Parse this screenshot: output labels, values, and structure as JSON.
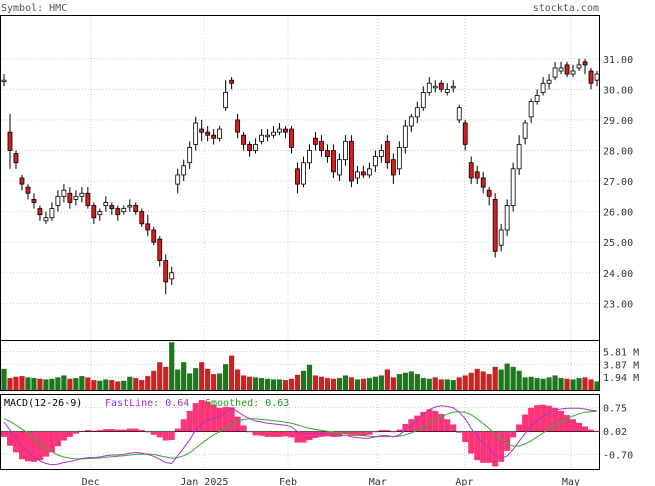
{
  "header": {
    "symbol_label": "Symbol: HMC",
    "site": "stockta.com"
  },
  "macd": {
    "label": "MACD(12-26-9)",
    "fast_label": "FastLine: 0.64",
    "smooth_label": "Smoothed: 0.63"
  },
  "colors": {
    "up": "#ffffff",
    "down": "#cc2222",
    "vol_up": "#1a7a1a",
    "vol_down": "#cc2222",
    "hist": "#ff3377",
    "fast_line": "#aa33cc",
    "smooth_line": "#33aa33",
    "grid": "#cccccc",
    "label_purple": "#9933cc",
    "label_green": "#229922"
  },
  "chart_data": [
    {
      "type": "candlestick",
      "title": "",
      "symbol": "HMC",
      "x_labels": [
        "Dec",
        "Jan 2025",
        "Feb",
        "Mar",
        "Apr",
        "May"
      ],
      "y_ticks": [
        "31.00",
        "30.00",
        "29.00",
        "28.00",
        "27.00",
        "26.00",
        "25.00",
        "24.00",
        "23.00"
      ],
      "y_tick_values": [
        31,
        30,
        29,
        28,
        27,
        26,
        25,
        24,
        23
      ],
      "ylim": [
        21.8,
        32.4
      ],
      "closes": [
        30.3,
        28.0,
        27.6,
        26.9,
        26.6,
        26.3,
        25.9,
        25.8,
        26.1,
        26.5,
        26.7,
        26.3,
        26.5,
        26.6,
        26.2,
        25.8,
        26.0,
        26.3,
        26.1,
        25.9,
        26.1,
        26.2,
        26.0,
        25.6,
        25.4,
        25.0,
        24.4,
        23.7,
        24.0,
        27.2,
        27.5,
        28.1,
        28.9,
        28.6,
        28.5,
        28.4,
        28.7,
        29.9,
        30.2,
        28.6,
        28.2,
        28.0,
        28.2,
        28.5,
        28.5,
        28.6,
        28.7,
        28.6,
        28.1,
        26.9,
        27.6,
        28.0,
        28.2,
        28.0,
        27.8,
        27.3,
        27.7,
        28.3,
        27.0,
        27.3,
        27.2,
        27.4,
        27.8,
        28.0,
        27.6,
        27.2,
        28.1,
        28.8,
        29.1,
        29.4,
        29.9,
        30.2,
        30.1,
        30.0,
        30.0,
        30.1,
        29.4,
        28.2,
        27.1,
        27.1,
        26.8,
        26.5,
        24.7,
        25.4,
        26.2,
        27.4,
        28.2,
        28.9,
        29.6,
        29.8,
        30.2,
        30.3,
        30.7,
        30.7,
        30.5,
        30.6,
        30.8,
        30.8,
        30.2,
        30.5
      ],
      "opens": [
        30.3,
        28.6,
        27.9,
        27.1,
        26.8,
        26.4,
        26.1,
        25.7,
        25.8,
        26.2,
        26.5,
        26.6,
        26.4,
        26.5,
        26.6,
        26.2,
        25.9,
        26.2,
        26.2,
        26.1,
        26.0,
        26.2,
        26.2,
        26.0,
        25.6,
        25.4,
        25.1,
        24.4,
        23.8,
        26.9,
        27.2,
        27.6,
        28.2,
        28.7,
        28.6,
        28.5,
        28.4,
        29.4,
        30.3,
        29.0,
        28.5,
        28.2,
        28.0,
        28.3,
        28.5,
        28.5,
        28.6,
        28.7,
        28.7,
        27.4,
        26.9,
        27.6,
        28.4,
        28.3,
        28.0,
        28.0,
        27.2,
        27.7,
        28.3,
        27.1,
        27.3,
        27.2,
        27.5,
        27.8,
        28.3,
        27.7,
        27.4,
        28.1,
        28.8,
        29.1,
        29.4,
        29.9,
        30.1,
        30.2,
        29.9,
        30.1,
        29.0,
        28.9,
        27.6,
        27.3,
        27.1,
        26.7,
        26.4,
        24.9,
        25.4,
        26.2,
        27.4,
        28.4,
        29.1,
        29.6,
        29.9,
        30.2,
        30.4,
        30.6,
        30.8,
        30.5,
        30.7,
        30.9,
        30.6,
        30.3
      ],
      "highs": [
        30.5,
        29.2,
        28.0,
        27.2,
        26.9,
        26.6,
        26.2,
        26.0,
        26.3,
        26.7,
        26.9,
        26.8,
        26.7,
        26.8,
        26.8,
        26.3,
        26.1,
        26.5,
        26.3,
        26.2,
        26.2,
        26.4,
        26.3,
        26.1,
        25.9,
        25.5,
        25.2,
        24.6,
        24.2,
        27.4,
        27.7,
        28.3,
        29.1,
        29.0,
        28.8,
        28.7,
        28.8,
        30.3,
        30.4,
        29.2,
        28.6,
        28.3,
        28.4,
        28.7,
        28.7,
        28.8,
        28.9,
        28.8,
        28.8,
        27.6,
        27.8,
        28.2,
        28.6,
        28.5,
        28.2,
        28.2,
        27.9,
        28.5,
        28.5,
        27.5,
        27.5,
        27.6,
        28.0,
        28.2,
        28.5,
        27.9,
        28.3,
        29.0,
        29.2,
        29.6,
        30.1,
        30.4,
        30.3,
        30.3,
        30.2,
        30.3,
        29.5,
        29.0,
        27.8,
        27.5,
        27.3,
        26.8,
        26.6,
        25.6,
        26.4,
        27.6,
        28.5,
        29.0,
        29.7,
        30.0,
        30.4,
        30.5,
        30.9,
        30.9,
        30.9,
        30.8,
        31.0,
        31.0,
        30.7,
        30.6
      ],
      "lows": [
        30.1,
        27.4,
        27.4,
        26.7,
        26.4,
        26.1,
        25.7,
        25.6,
        25.7,
        26.0,
        26.3,
        26.1,
        26.2,
        26.3,
        26.1,
        25.6,
        25.7,
        26.0,
        25.9,
        25.7,
        25.9,
        26.0,
        25.9,
        25.5,
        25.2,
        24.9,
        24.2,
        23.3,
        23.6,
        26.6,
        27.0,
        27.4,
        28.0,
        28.3,
        28.3,
        28.2,
        28.3,
        29.3,
        30.0,
        28.4,
        28.0,
        27.8,
        27.9,
        28.2,
        28.3,
        28.4,
        28.5,
        28.4,
        27.9,
        26.6,
        26.8,
        27.4,
        28.0,
        27.8,
        27.6,
        27.1,
        27.0,
        27.5,
        26.8,
        26.9,
        27.1,
        27.1,
        27.3,
        27.6,
        27.4,
        26.9,
        27.2,
        27.9,
        28.6,
        28.9,
        29.3,
        29.8,
        29.9,
        29.9,
        29.8,
        29.9,
        28.9,
        28.0,
        26.9,
        26.9,
        26.6,
        26.2,
        24.5,
        24.7,
        25.2,
        26.0,
        27.2,
        28.2,
        28.9,
        29.5,
        29.8,
        30.0,
        30.3,
        30.5,
        30.4,
        30.4,
        30.6,
        30.5,
        30.0,
        30.1
      ]
    },
    {
      "type": "bar",
      "title": "Volume",
      "y_ticks": [
        "5.81 M",
        "3.87 M",
        "1.94 M"
      ],
      "y_tick_values": [
        5.81,
        3.87,
        1.94
      ],
      "ylim": [
        0,
        7.4
      ],
      "values": [
        3.2,
        1.8,
        2.0,
        2.1,
        1.9,
        1.8,
        1.7,
        1.6,
        1.7,
        1.9,
        2.2,
        1.7,
        1.8,
        2.1,
        1.9,
        1.5,
        1.4,
        1.6,
        1.5,
        1.3,
        1.4,
        2.0,
        1.8,
        1.5,
        2.1,
        2.9,
        4.2,
        3.5,
        7.2,
        3.1,
        4.2,
        2.5,
        3.3,
        4.2,
        3.2,
        2.4,
        2.5,
        3.9,
        5.2,
        3.1,
        2.2,
        2.0,
        1.9,
        1.8,
        1.7,
        1.6,
        1.6,
        1.5,
        1.7,
        2.3,
        2.9,
        3.8,
        2.2,
        2.0,
        1.8,
        1.7,
        1.8,
        2.2,
        1.9,
        1.6,
        1.7,
        1.8,
        2.0,
        2.2,
        3.1,
        1.9,
        2.4,
        2.6,
        2.8,
        2.4,
        1.8,
        1.7,
        1.9,
        1.6,
        1.6,
        1.5,
        1.9,
        2.2,
        2.6,
        3.2,
        2.8,
        2.4,
        3.5,
        3.1,
        4.0,
        3.5,
        2.9,
        1.9,
        2.0,
        1.8,
        1.7,
        1.9,
        2.2,
        1.8,
        1.7,
        1.6,
        1.8,
        1.9,
        1.6,
        1.3
      ],
      "up_flags": [
        1,
        0,
        0,
        0,
        1,
        1,
        0,
        1,
        1,
        1,
        1,
        0,
        1,
        1,
        0,
        0,
        1,
        1,
        0,
        0,
        1,
        1,
        0,
        0,
        0,
        0,
        0,
        0,
        1,
        1,
        1,
        1,
        1,
        0,
        0,
        0,
        1,
        1,
        0,
        0,
        0,
        0,
        1,
        1,
        1,
        1,
        1,
        0,
        0,
        0,
        1,
        1,
        0,
        0,
        0,
        0,
        1,
        1,
        0,
        1,
        0,
        1,
        1,
        1,
        0,
        0,
        1,
        1,
        1,
        1,
        1,
        1,
        0,
        0,
        1,
        1,
        0,
        0,
        0,
        0,
        0,
        0,
        0,
        1,
        1,
        1,
        1,
        1,
        1,
        1,
        1,
        1,
        1,
        1,
        0,
        1,
        1,
        0,
        0,
        1
      ]
    },
    {
      "type": "line",
      "title": "MACD(12-26-9)",
      "y_ticks": [
        "0.75",
        "0.02",
        "-0.70"
      ],
      "y_tick_values": [
        0.75,
        0.02,
        -0.7
      ],
      "ylim": [
        -1.15,
        1.1
      ],
      "series": [
        {
          "name": "FastLine",
          "values": [
            0.3,
            0.05,
            -0.2,
            -0.45,
            -0.62,
            -0.78,
            -0.9,
            -0.98,
            -1.02,
            -1.0,
            -0.95,
            -0.92,
            -0.88,
            -0.83,
            -0.8,
            -0.8,
            -0.78,
            -0.74,
            -0.72,
            -0.72,
            -0.7,
            -0.66,
            -0.64,
            -0.66,
            -0.7,
            -0.76,
            -0.85,
            -0.95,
            -0.98,
            -0.74,
            -0.5,
            -0.25,
            0.05,
            0.25,
            0.36,
            0.42,
            0.46,
            0.6,
            0.72,
            0.62,
            0.5,
            0.4,
            0.33,
            0.3,
            0.26,
            0.24,
            0.22,
            0.2,
            0.15,
            0.0,
            -0.06,
            -0.06,
            -0.05,
            -0.06,
            -0.08,
            -0.12,
            -0.14,
            -0.1,
            -0.16,
            -0.18,
            -0.2,
            -0.2,
            -0.16,
            -0.12,
            -0.12,
            -0.16,
            -0.1,
            0.05,
            0.2,
            0.35,
            0.52,
            0.68,
            0.76,
            0.8,
            0.78,
            0.74,
            0.6,
            0.4,
            0.1,
            -0.15,
            -0.35,
            -0.5,
            -0.75,
            -0.82,
            -0.75,
            -0.55,
            -0.3,
            -0.05,
            0.18,
            0.35,
            0.48,
            0.58,
            0.66,
            0.7,
            0.72,
            0.72,
            0.72,
            0.7,
            0.66,
            0.64
          ]
        },
        {
          "name": "Smoothed",
          "values": [
            0.4,
            0.32,
            0.2,
            0.08,
            -0.05,
            -0.2,
            -0.35,
            -0.5,
            -0.62,
            -0.72,
            -0.78,
            -0.82,
            -0.84,
            -0.84,
            -0.83,
            -0.82,
            -0.81,
            -0.79,
            -0.77,
            -0.76,
            -0.74,
            -0.72,
            -0.7,
            -0.69,
            -0.69,
            -0.7,
            -0.74,
            -0.78,
            -0.82,
            -0.8,
            -0.74,
            -0.65,
            -0.5,
            -0.36,
            -0.22,
            -0.1,
            0.0,
            0.12,
            0.25,
            0.33,
            0.38,
            0.4,
            0.4,
            0.38,
            0.36,
            0.34,
            0.32,
            0.29,
            0.26,
            0.21,
            0.15,
            0.1,
            0.07,
            0.04,
            0.01,
            -0.02,
            -0.05,
            -0.06,
            -0.08,
            -0.1,
            -0.12,
            -0.14,
            -0.15,
            -0.15,
            -0.15,
            -0.15,
            -0.14,
            -0.1,
            -0.04,
            0.04,
            0.14,
            0.25,
            0.36,
            0.46,
            0.54,
            0.6,
            0.62,
            0.6,
            0.52,
            0.4,
            0.25,
            0.1,
            -0.08,
            -0.24,
            -0.38,
            -0.44,
            -0.44,
            -0.38,
            -0.28,
            -0.16,
            -0.04,
            0.08,
            0.2,
            0.3,
            0.4,
            0.48,
            0.55,
            0.6,
            0.62,
            0.63
          ]
        }
      ]
    }
  ]
}
